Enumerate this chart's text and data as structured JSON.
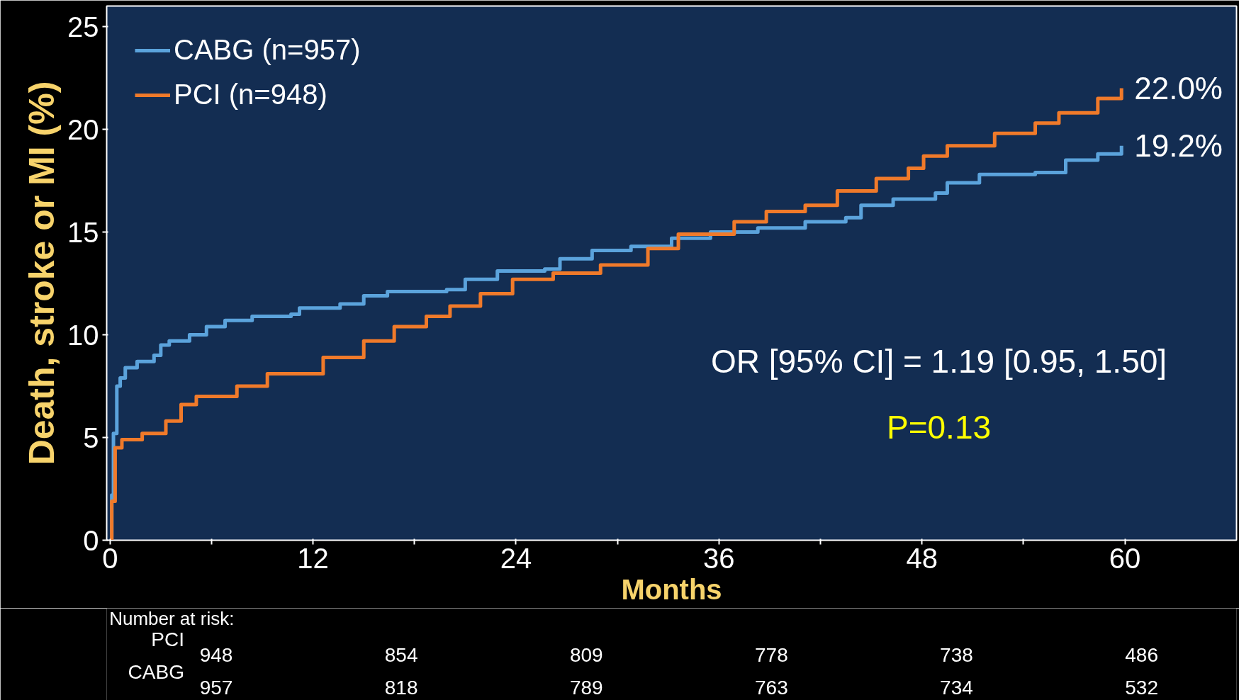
{
  "chart_data": {
    "type": "step",
    "ylabel": "Death, stroke or MI (%)",
    "xlabel": "Months",
    "xlim": [
      -0.2,
      66.6
    ],
    "ylim": [
      0,
      26
    ],
    "xticks": [
      0,
      {
        "value": 6,
        "label": null
      },
      12,
      {
        "value": 18,
        "label": null
      },
      24,
      {
        "value": 30,
        "label": null
      },
      36,
      {
        "value": 42,
        "label": null
      },
      48,
      {
        "value": 54,
        "label": null
      },
      60
    ],
    "yticks": [
      0,
      5,
      10,
      15,
      20,
      25
    ],
    "grid": false,
    "legend": "top left",
    "series": [
      {
        "name": "CABG (n=957)",
        "color": "#5ba3dc",
        "x": [
          0,
          0.1,
          0.2,
          0.4,
          0.6,
          0.9,
          1.6,
          2.6,
          3.0,
          3.5,
          4.7,
          5.7,
          6.8,
          8.4,
          10.7,
          11.2,
          13.6,
          15.0,
          16.4,
          19.9,
          21.0,
          22.9,
          25.7,
          26.6,
          28.5,
          30.8,
          33.2,
          35.5,
          38.3,
          41.1,
          43.5,
          44.4,
          46.3,
          48.8,
          49.5,
          51.4,
          54.7,
          56.5,
          58.4,
          59.8
        ],
        "values": [
          0,
          2.2,
          5.2,
          7.5,
          7.9,
          8.4,
          8.7,
          9.0,
          9.5,
          9.7,
          10.0,
          10.4,
          10.7,
          10.9,
          11.0,
          11.3,
          11.5,
          11.9,
          12.1,
          12.2,
          12.7,
          13.1,
          13.2,
          13.7,
          14.1,
          14.3,
          14.7,
          15.0,
          15.2,
          15.5,
          15.7,
          16.3,
          16.6,
          16.9,
          17.4,
          17.8,
          17.9,
          18.5,
          18.8,
          19.2
        ]
      },
      {
        "name": "PCI (n=948)",
        "color": "#f07a2a",
        "x": [
          0,
          0.1,
          0.3,
          0.7,
          1.9,
          3.3,
          4.2,
          5.1,
          7.5,
          9.3,
          11.7,
          12.6,
          15.0,
          16.8,
          18.7,
          20.1,
          21.9,
          23.8,
          26.2,
          29.0,
          31.8,
          33.6,
          36.9,
          38.8,
          41.1,
          43.0,
          45.3,
          47.2,
          48.1,
          49.5,
          52.3,
          54.7,
          56.1,
          58.4,
          59.8
        ],
        "values": [
          0,
          1.9,
          4.5,
          4.9,
          5.2,
          5.8,
          6.6,
          7.0,
          7.5,
          8.1,
          8.1,
          8.9,
          9.7,
          10.4,
          10.9,
          11.4,
          12.0,
          12.7,
          13.0,
          13.4,
          14.2,
          14.9,
          15.5,
          16.0,
          16.3,
          17.0,
          17.6,
          18.1,
          18.7,
          19.2,
          19.8,
          20.3,
          20.8,
          21.5,
          22.0
        ]
      }
    ],
    "annotations": [
      {
        "text": "22.0%",
        "x": 59.8,
        "y": 22.0
      },
      {
        "text": "19.2%",
        "x": 59.8,
        "y": 19.2
      },
      "OR [95% CI] = 1.19 [0.95, 1.50]",
      "P=0.13",
      "Number at risk:",
      "PCI",
      "948",
      "854",
      "809",
      "778",
      "738",
      "486",
      "CABG",
      "957",
      "818",
      "789",
      "763",
      "734",
      "532"
    ]
  }
}
